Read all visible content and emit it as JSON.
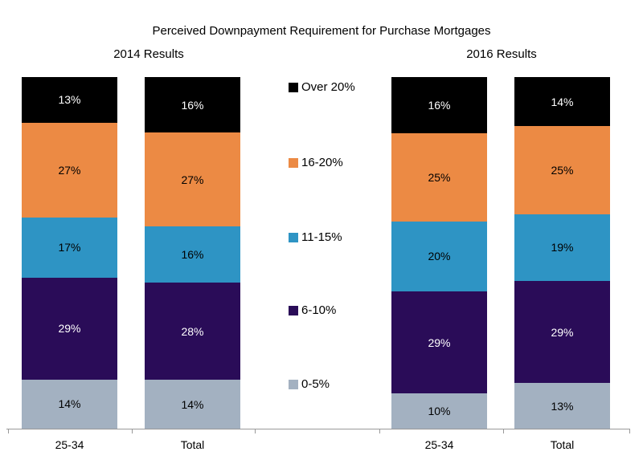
{
  "title": "Perceived Downpayment Requirement for Purchase Mortgages",
  "chart_data": {
    "type": "bar",
    "variant": "100-percent-stacked-column",
    "title": "Perceived Downpayment Requirement for Purchase Mortgages",
    "group_labels": [
      "2014 Results",
      "2016 Results"
    ],
    "categories": [
      "25-34",
      "Total",
      "25-34",
      "Total"
    ],
    "category_groups": [
      "2014 Results",
      "2014 Results",
      "2016 Results",
      "2016 Results"
    ],
    "series": [
      {
        "name": "Over 20%",
        "color": "#000000",
        "label_color": "#FFFFFF",
        "values": [
          13,
          16,
          16,
          14
        ]
      },
      {
        "name": "16-20%",
        "color": "#EC8A44",
        "label_color": "#000000",
        "values": [
          27,
          27,
          25,
          25
        ]
      },
      {
        "name": "11-15%",
        "color": "#2E94C4",
        "label_color": "#000000",
        "values": [
          17,
          16,
          20,
          19
        ]
      },
      {
        "name": "6-10%",
        "color": "#2A0C58",
        "label_color": "#FFFFFF",
        "values": [
          29,
          28,
          29,
          29
        ]
      },
      {
        "name": "0-5%",
        "color": "#A3B1C1",
        "label_color": "#000000",
        "values": [
          14,
          14,
          10,
          13
        ]
      }
    ],
    "value_suffix": "%",
    "ylim": [
      0,
      100
    ],
    "grid": false,
    "legend_position": "center-between-groups",
    "axis_color": "#999999",
    "background_color": "#FFFFFF"
  }
}
